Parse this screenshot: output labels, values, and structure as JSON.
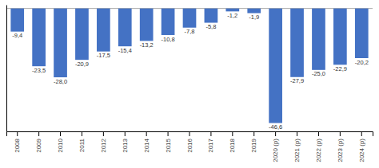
{
  "chart_data": {
    "type": "bar",
    "categories": [
      "2008",
      "2009",
      "2010",
      "2011",
      "2012",
      "2013",
      "2014",
      "2015",
      "2016",
      "2017",
      "2018",
      "2019",
      "2020 (p)",
      "2021 (p)",
      "2022 (p)",
      "2023 (p)",
      "2024 (p)"
    ],
    "values": [
      -9.4,
      -23.5,
      -28.0,
      -20.9,
      -17.5,
      -15.4,
      -13.2,
      -10.8,
      -7.8,
      -5.8,
      -1.2,
      -1.9,
      -46.6,
      -27.9,
      -25.0,
      -22.9,
      -20.2
    ],
    "value_labels": [
      "-9,4",
      "-23,5",
      "-28,0",
      "-20,9",
      "-17,5",
      "-15,4",
      "-13,2",
      "-10,8",
      "-7,8",
      "-5,8",
      "-1,2",
      "-1,9",
      "-46,6",
      "-27,9",
      "-25,0",
      "-22,9",
      "-20,2"
    ],
    "color": "#4472C4",
    "ylim": [
      -50,
      1.5
    ],
    "data_labels": true,
    "tick_labels": "x",
    "grid": false
  }
}
